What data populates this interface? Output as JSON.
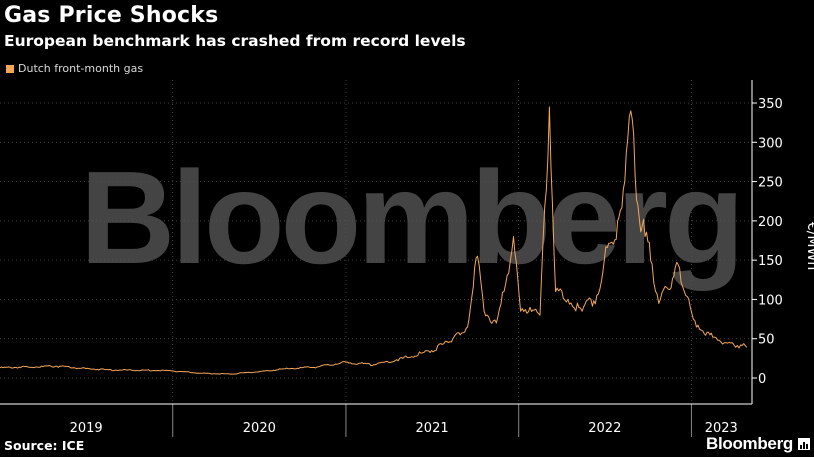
{
  "header": {
    "title": "Gas Price Shocks",
    "subtitle": "European benchmark has crashed from record levels"
  },
  "legend": {
    "label": "Dutch front-month gas"
  },
  "watermark": "Bloomberg",
  "footer": {
    "source": "Source: ICE",
    "brand": "Bloomberg"
  },
  "colors": {
    "series": "#f2a65a",
    "background": "#000000",
    "grid": "#555555"
  },
  "chart_data": {
    "type": "line",
    "title": "Gas Price Shocks",
    "subtitle": "European benchmark has crashed from record levels",
    "ylabel": "€/MWh",
    "ylim": [
      -10,
      360
    ],
    "yticks": [
      0,
      50,
      100,
      150,
      200,
      250,
      300,
      350
    ],
    "xticks": [
      "2019",
      "2020",
      "2021",
      "2022",
      "2023"
    ],
    "grid": true,
    "legend_placement": "top-left",
    "series": [
      {
        "name": "Dutch front-month gas",
        "x": [
          "2019-01-01",
          "2019-03-01",
          "2019-05-01",
          "2019-07-01",
          "2019-09-01",
          "2019-11-01",
          "2020-01-01",
          "2020-03-01",
          "2020-05-01",
          "2020-07-01",
          "2020-09-01",
          "2020-11-01",
          "2021-01-01",
          "2021-03-01",
          "2021-05-01",
          "2021-07-01",
          "2021-08-15",
          "2021-09-15",
          "2021-10-06",
          "2021-10-20",
          "2021-11-15",
          "2021-12-01",
          "2021-12-21",
          "2022-01-05",
          "2022-01-25",
          "2022-02-15",
          "2022-03-07",
          "2022-03-20",
          "2022-04-15",
          "2022-05-15",
          "2022-06-15",
          "2022-07-01",
          "2022-07-20",
          "2022-08-10",
          "2022-08-26",
          "2022-09-10",
          "2022-09-25",
          "2022-10-10",
          "2022-10-24",
          "2022-11-10",
          "2022-11-25",
          "2022-12-07",
          "2022-12-20",
          "2023-01-05",
          "2023-01-25",
          "2023-02-15",
          "2023-03-01",
          "2023-03-15",
          "2023-04-01",
          "2023-04-15",
          "2023-04-28"
        ],
        "values": [
          13,
          14,
          15,
          12,
          10,
          10,
          9,
          6,
          5,
          8,
          12,
          14,
          20,
          17,
          25,
          35,
          50,
          65,
          155,
          85,
          70,
          110,
          180,
          85,
          90,
          80,
          345,
          110,
          100,
          85,
          105,
          150,
          170,
          240,
          340,
          220,
          180,
          145,
          95,
          115,
          130,
          140,
          105,
          75,
          60,
          52,
          48,
          45,
          42,
          42,
          39
        ]
      }
    ]
  }
}
